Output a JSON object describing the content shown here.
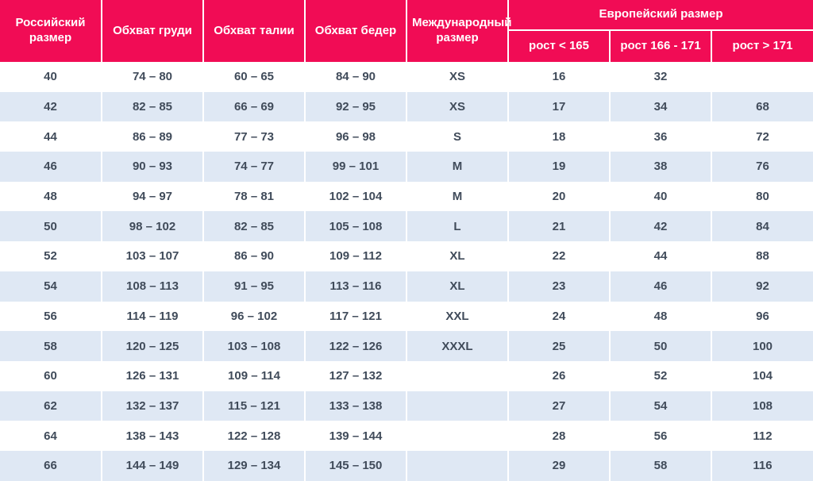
{
  "chart_data": {
    "type": "table",
    "headers": {
      "russian_size": "Российский размер",
      "chest": "Обхват груди",
      "waist": "Обхват талии",
      "hips": "Обхват бедер",
      "international_size": "Международный размер",
      "european_size_group": "Европейский размер",
      "height_lt_165": "рост < 165",
      "height_166_171": "рост 166 - 171",
      "height_gt_171": "рост > 171"
    },
    "rows": [
      [
        "40",
        "74 – 80",
        "60 – 65",
        "84 – 90",
        "XS",
        "16",
        "32",
        ""
      ],
      [
        "42",
        "82 – 85",
        "66 – 69",
        "92 – 95",
        "XS",
        "17",
        "34",
        "68"
      ],
      [
        "44",
        "86 – 89",
        "77 – 73",
        "96 – 98",
        "S",
        "18",
        "36",
        "72"
      ],
      [
        "46",
        "90 – 93",
        "74 – 77",
        "99 – 101",
        "M",
        "19",
        "38",
        "76"
      ],
      [
        "48",
        "94 – 97",
        "78 – 81",
        "102 – 104",
        "M",
        "20",
        "40",
        "80"
      ],
      [
        "50",
        "98 – 102",
        "82 – 85",
        "105 – 108",
        "L",
        "21",
        "42",
        "84"
      ],
      [
        "52",
        "103 – 107",
        "86 – 90",
        "109 – 112",
        "XL",
        "22",
        "44",
        "88"
      ],
      [
        "54",
        "108 – 113",
        "91 – 95",
        "113 – 116",
        "XL",
        "23",
        "46",
        "92"
      ],
      [
        "56",
        "114 – 119",
        "96 – 102",
        "117 – 121",
        "XXL",
        "24",
        "48",
        "96"
      ],
      [
        "58",
        "120 – 125",
        "103 – 108",
        "122 – 126",
        "XXXL",
        "25",
        "50",
        "100"
      ],
      [
        "60",
        "126 – 131",
        "109 – 114",
        "127 – 132",
        "",
        "26",
        "52",
        "104"
      ],
      [
        "62",
        "132 – 137",
        "115 – 121",
        "133 – 138",
        "",
        "27",
        "54",
        "108"
      ],
      [
        "64",
        "138 – 143",
        "122 – 128",
        "139 – 144",
        "",
        "28",
        "56",
        "112"
      ],
      [
        "66",
        "144 – 149",
        "129 – 134",
        "145 – 150",
        "",
        "29",
        "58",
        "116"
      ]
    ]
  },
  "colors": {
    "header_bg": "#F10C55",
    "header_text": "#FFFFFF",
    "row_odd_bg": "#FFFFFF",
    "row_even_bg": "#DFE8F4",
    "cell_text": "#404B5A",
    "cell_divider": "#FFFFFF"
  }
}
